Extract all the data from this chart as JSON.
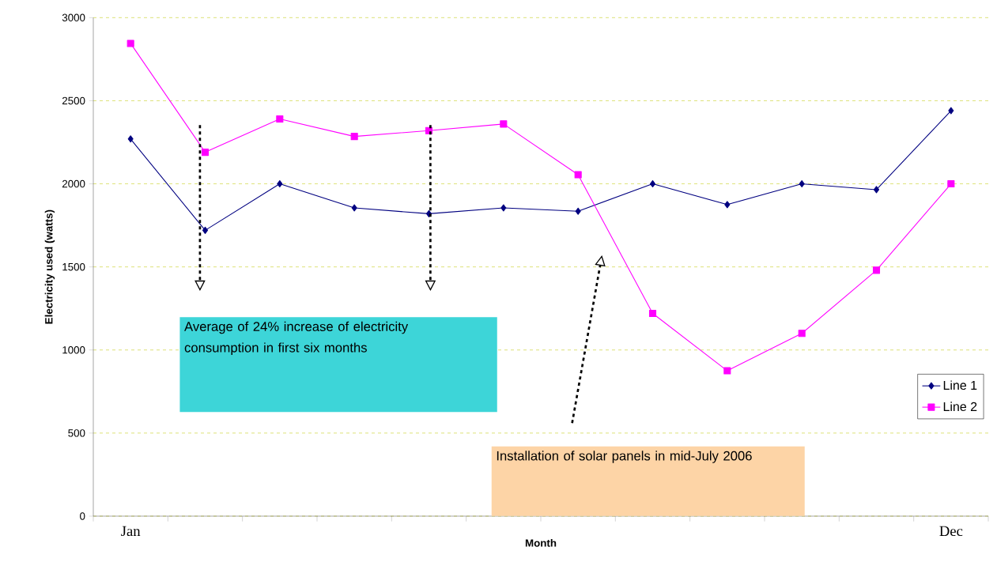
{
  "chart_data": {
    "type": "line",
    "xlabel": "Month",
    "ylabel": "Electricity used (watts)",
    "categories": [
      "Jan",
      null,
      null,
      null,
      null,
      null,
      null,
      null,
      null,
      null,
      null,
      "Dec"
    ],
    "series": [
      {
        "name": "Line 1",
        "color": "#000080",
        "marker": "diamond",
        "values": [
          2270,
          1720,
          2000,
          1855,
          1820,
          1855,
          1835,
          2000,
          1875,
          2000,
          1965,
          2440
        ]
      },
      {
        "name": "Line 2",
        "color": "#ff00ff",
        "marker": "square",
        "values": [
          2845,
          2190,
          2390,
          2285,
          2320,
          2360,
          2055,
          1220,
          875,
          1100,
          1480,
          2000
        ]
      }
    ],
    "ylim": [
      0,
      3000
    ],
    "yticks": [
      0,
      500,
      1000,
      1500,
      2000,
      2500,
      3000
    ],
    "grid": "y",
    "legend": "right",
    "annotations": [
      "Average of 24% increase of electricity consumption in first six months",
      "Installation of solar panels in mid-July 2006"
    ]
  }
}
